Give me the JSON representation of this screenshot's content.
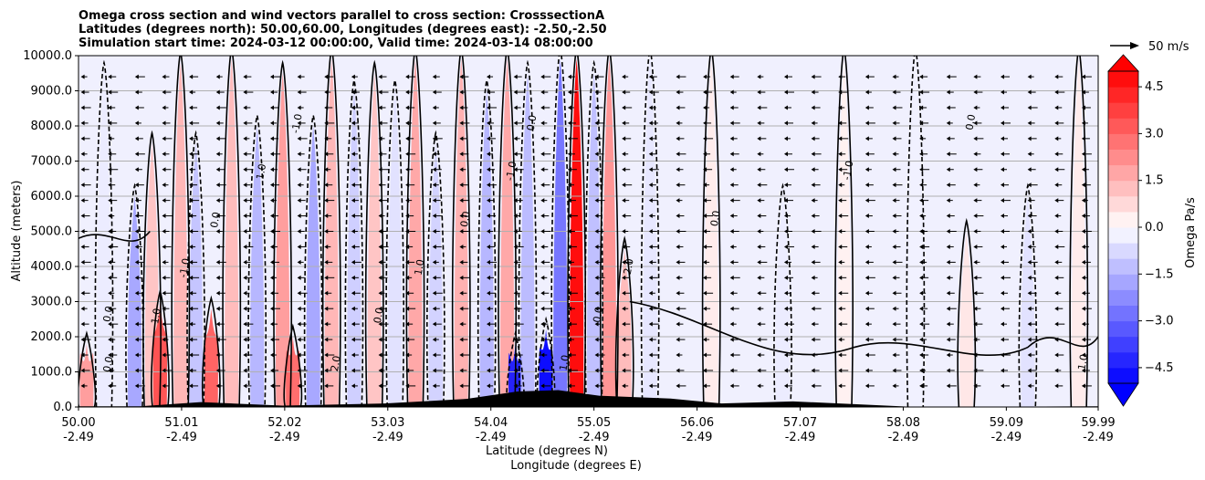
{
  "chart_data": {
    "type": "heatmap",
    "title_lines": [
      "Omega cross section and wind vectors parallel to cross section: CrosssectionA",
      "Latitudes (degrees north): 50.00,60.00, Longitudes (degrees east): -2.50,-2.50",
      "Simulation start time: 2024-03-12 00:00:00, Valid time: 2024-03-14 08:00:00"
    ],
    "ylabel": "Altitude (meters)",
    "xlabel_lat": "Latitude (degrees N)",
    "xlabel_lon": "Longitude (degrees E)",
    "ylim": [
      0,
      10000
    ],
    "y_ticks": [
      "0.0",
      "1000.0",
      "2000.0",
      "3000.0",
      "4000.0",
      "5000.0",
      "6000.0",
      "7000.0",
      "8000.0",
      "9000.0",
      "10000.0"
    ],
    "y_tick_values": [
      0,
      1000,
      2000,
      3000,
      4000,
      5000,
      6000,
      7000,
      8000,
      9000,
      10000
    ],
    "xlim": [
      50.0,
      59.99
    ],
    "x_tick_values": [
      50.0,
      51.01,
      52.02,
      53.03,
      54.04,
      55.05,
      56.06,
      57.07,
      58.08,
      59.09,
      59.99
    ],
    "x_ticks_lat": [
      "50.00",
      "51.01",
      "52.02",
      "53.03",
      "54.04",
      "55.05",
      "56.06",
      "57.07",
      "58.08",
      "59.09",
      "59.99"
    ],
    "x_ticks_lon": [
      "-2.49",
      "-2.49",
      "-2.49",
      "-2.49",
      "-2.49",
      "-2.49",
      "-2.49",
      "-2.49",
      "-2.49",
      "-2.49",
      "-2.49"
    ],
    "colorbar": {
      "label": "Omega Pa/s",
      "ticks": [
        "4.5",
        "3.0",
        "1.5",
        "0.0",
        "−1.5",
        "−3.0",
        "−4.5"
      ],
      "tick_values": [
        4.5,
        3.0,
        1.5,
        0.0,
        -1.5,
        -3.0,
        -4.5
      ],
      "range": [
        -5.0,
        5.0
      ],
      "levels": 20,
      "positive_color": "#ff0000",
      "negative_color": "#0000ff",
      "neutral_color": "#ffffff"
    },
    "quiver_key": "50 m/s",
    "contour_labels": [
      "0.0",
      "1.0",
      "-1.0",
      "0.0",
      "1.0",
      "-1.0",
      "2.0",
      "0.0",
      "1.0",
      "0.0",
      "-1.0",
      "0.0",
      "1.0",
      "0.0",
      "2.0",
      "0.0",
      "-1.0",
      "0.0",
      "1.0",
      "0.0"
    ],
    "omega_bands": [
      {
        "lat": 50.08,
        "ymax": 1800,
        "value": 2.0
      },
      {
        "lat": 50.25,
        "ymax": 9500,
        "value": -0.4
      },
      {
        "lat": 50.55,
        "ymax": 6000,
        "value": -1.8
      },
      {
        "lat": 50.72,
        "ymax": 7500,
        "value": 1.2
      },
      {
        "lat": 50.8,
        "ymax": 3000,
        "value": 3.5
      },
      {
        "lat": 51.0,
        "ymax": 9800,
        "value": 1.5
      },
      {
        "lat": 51.15,
        "ymax": 7500,
        "value": -1.2
      },
      {
        "lat": 51.3,
        "ymax": 2800,
        "value": 3.2
      },
      {
        "lat": 51.5,
        "ymax": 9900,
        "value": 1.4
      },
      {
        "lat": 51.75,
        "ymax": 8000,
        "value": -1.5
      },
      {
        "lat": 52.0,
        "ymax": 9500,
        "value": 2.0
      },
      {
        "lat": 52.1,
        "ymax": 2000,
        "value": 3.0
      },
      {
        "lat": 52.3,
        "ymax": 8000,
        "value": -1.8
      },
      {
        "lat": 52.48,
        "ymax": 9900,
        "value": 1.5
      },
      {
        "lat": 52.7,
        "ymax": 9000,
        "value": -1.0
      },
      {
        "lat": 52.9,
        "ymax": 9500,
        "value": 1.2
      },
      {
        "lat": 53.1,
        "ymax": 9000,
        "value": -0.6
      },
      {
        "lat": 53.3,
        "ymax": 9900,
        "value": 1.8
      },
      {
        "lat": 53.5,
        "ymax": 7500,
        "value": -0.9
      },
      {
        "lat": 53.75,
        "ymax": 9900,
        "value": 1.6
      },
      {
        "lat": 54.0,
        "ymax": 9000,
        "value": -1.5
      },
      {
        "lat": 54.2,
        "ymax": 9900,
        "value": 1.8
      },
      {
        "lat": 54.28,
        "ymax": 1800,
        "value": -4.5
      },
      {
        "lat": 54.4,
        "ymax": 9500,
        "value": -1.4
      },
      {
        "lat": 54.58,
        "ymax": 2200,
        "value": -5.0
      },
      {
        "lat": 54.72,
        "ymax": 9900,
        "value": -2.8
      },
      {
        "lat": 54.88,
        "ymax": 9900,
        "value": 5.0
      },
      {
        "lat": 55.05,
        "ymax": 9500,
        "value": -1.3
      },
      {
        "lat": 55.2,
        "ymax": 9900,
        "value": 2.2
      },
      {
        "lat": 55.35,
        "ymax": 4500,
        "value": 1.4
      },
      {
        "lat": 55.6,
        "ymax": 9900,
        "value": -0.5
      },
      {
        "lat": 56.2,
        "ymax": 9900,
        "value": 0.4
      },
      {
        "lat": 56.9,
        "ymax": 6000,
        "value": -0.4
      },
      {
        "lat": 57.5,
        "ymax": 9900,
        "value": 0.3
      },
      {
        "lat": 58.2,
        "ymax": 9900,
        "value": -0.3
      },
      {
        "lat": 58.7,
        "ymax": 5000,
        "value": 0.5
      },
      {
        "lat": 59.3,
        "ymax": 6000,
        "value": -0.6
      },
      {
        "lat": 59.8,
        "ymax": 9900,
        "value": 0.4
      }
    ],
    "terrain": [
      {
        "lat": 50.0,
        "h": 0
      },
      {
        "lat": 50.6,
        "h": 40
      },
      {
        "lat": 51.2,
        "h": 120
      },
      {
        "lat": 52.0,
        "h": 60
      },
      {
        "lat": 53.0,
        "h": 80
      },
      {
        "lat": 53.8,
        "h": 250
      },
      {
        "lat": 54.3,
        "h": 420
      },
      {
        "lat": 54.7,
        "h": 500
      },
      {
        "lat": 55.1,
        "h": 300
      },
      {
        "lat": 55.8,
        "h": 260
      },
      {
        "lat": 56.3,
        "h": 80
      },
      {
        "lat": 57.0,
        "h": 180
      },
      {
        "lat": 57.6,
        "h": 60
      },
      {
        "lat": 58.2,
        "h": 0
      },
      {
        "lat": 59.99,
        "h": 0
      }
    ]
  }
}
